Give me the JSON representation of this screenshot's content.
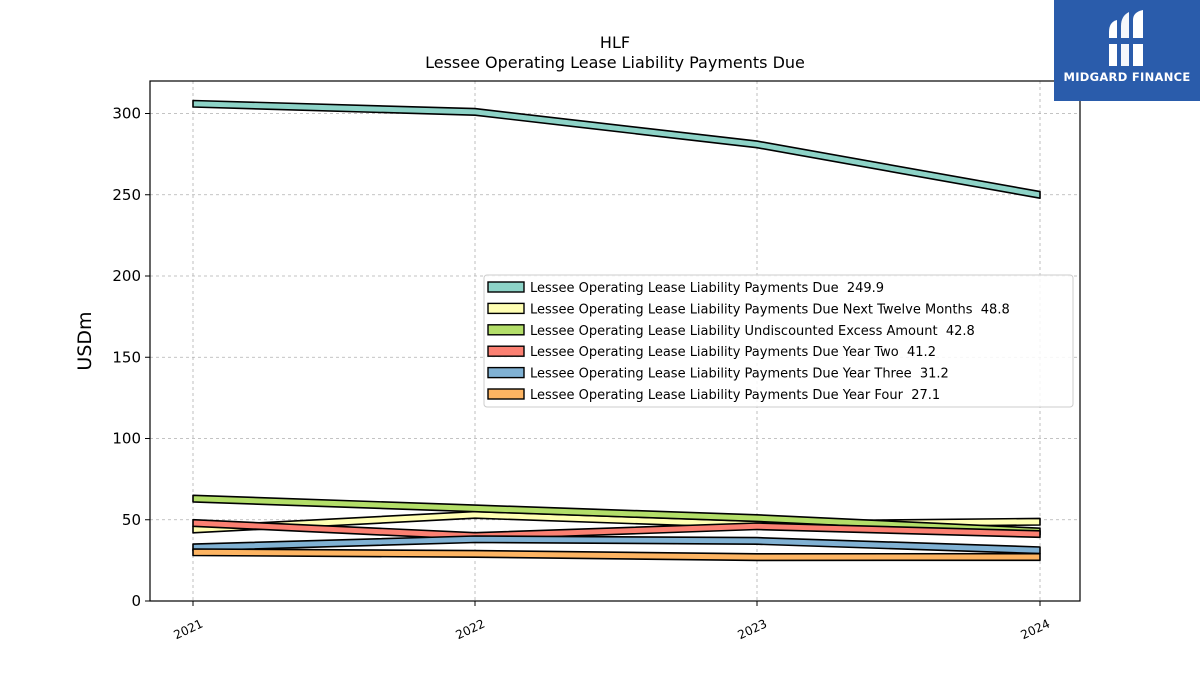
{
  "chart_data": {
    "type": "line",
    "title": "HLF",
    "subtitle": "Lessee Operating Lease Liability Payments Due",
    "xlabel": "",
    "ylabel": "USDm",
    "categories": [
      "2021",
      "2022",
      "2023",
      "2024"
    ],
    "ylim": [
      0,
      320
    ],
    "yticks": [
      0,
      50,
      100,
      150,
      200,
      250,
      300
    ],
    "grid": true,
    "legend_position": "center-right",
    "series": [
      {
        "name": "Lessee Operating Lease Liability Payments Due  249.9",
        "values": [
          306,
          301,
          281,
          249.9
        ],
        "color": "#8dd3c7"
      },
      {
        "name": "Lessee Operating Lease Liability Payments Due Next Twelve Months  48.8",
        "values": [
          44,
          53,
          47,
          48.8
        ],
        "color": "#ffffb3"
      },
      {
        "name": "Lessee Operating Lease Liability Undiscounted Excess Amount  42.8",
        "values": [
          63,
          57,
          51,
          42.8
        ],
        "color": "#b3de69"
      },
      {
        "name": "Lessee Operating Lease Liability Payments Due Year Two  41.2",
        "values": [
          48,
          40,
          46,
          41.2
        ],
        "color": "#fb8072"
      },
      {
        "name": "Lessee Operating Lease Liability Payments Due Year Three  31.2",
        "values": [
          33,
          38,
          37,
          31.2
        ],
        "color": "#80b1d3"
      },
      {
        "name": "Lessee Operating Lease Liability Payments Due Year Four  27.1",
        "values": [
          30,
          29,
          27,
          27.1
        ],
        "color": "#fdb462"
      }
    ]
  },
  "logo": {
    "text": "MIDGARD FINANCE",
    "color": "#2a5cab"
  }
}
